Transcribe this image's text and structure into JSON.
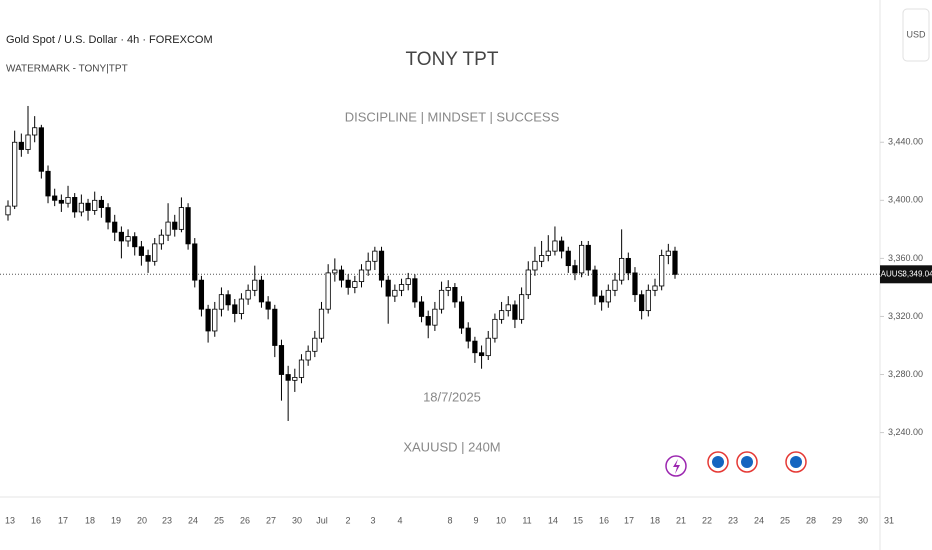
{
  "chart_data": {
    "type": "candlestick",
    "title": "Gold Spot / U.S. Dollar · 4h · FOREXCOM",
    "subtitle": "WATERMARK - TONY|TPT",
    "watermark": {
      "title": "TONY TPT",
      "motto": "DISCIPLINE | MINDSET | SUCCESS",
      "date": "18/7/2025",
      "symbol_interval": "XAUUSD | 240M"
    },
    "currency": "USD",
    "last_price": {
      "symbol": "XAUUSD",
      "value": 3349.04,
      "label": "3,349.04"
    },
    "up_color": "#ffffff",
    "down_color": "#000000",
    "categories": [
      "13",
      "16",
      "17",
      "18",
      "19",
      "20",
      "23",
      "24",
      "25",
      "26",
      "27",
      "30",
      "Jul",
      "2",
      "3",
      "4",
      "8",
      "9",
      "10",
      "11",
      "14",
      "15",
      "16",
      "17",
      "18",
      "21",
      "22",
      "23",
      "24",
      "25",
      "28",
      "29",
      "30",
      "31"
    ],
    "ylim": [
      3197,
      3538
    ],
    "yticks": [
      {
        "value": 3440,
        "label": "3,440.00"
      },
      {
        "value": 3400,
        "label": "3,400.00"
      },
      {
        "value": 3360,
        "label": "3,360.00"
      },
      {
        "value": 3320,
        "label": "3,320.00"
      },
      {
        "value": 3280,
        "label": "3,280.00"
      },
      {
        "value": 3240,
        "label": "3,240.00"
      }
    ],
    "ohlc": [
      [
        3390,
        3400,
        3386,
        3396
      ],
      [
        3396,
        3448,
        3394,
        3440
      ],
      [
        3440,
        3446,
        3430,
        3435
      ],
      [
        3435,
        3465,
        3432,
        3445
      ],
      [
        3445,
        3458,
        3440,
        3450
      ],
      [
        3450,
        3452,
        3415,
        3420
      ],
      [
        3420,
        3424,
        3398,
        3403
      ],
      [
        3403,
        3408,
        3396,
        3400
      ],
      [
        3400,
        3404,
        3392,
        3398
      ],
      [
        3398,
        3410,
        3395,
        3402
      ],
      [
        3402,
        3405,
        3388,
        3392
      ],
      [
        3392,
        3404,
        3389,
        3398
      ],
      [
        3398,
        3401,
        3386,
        3393
      ],
      [
        3393,
        3406,
        3390,
        3400
      ],
      [
        3400,
        3403,
        3388,
        3395
      ],
      [
        3395,
        3398,
        3380,
        3385
      ],
      [
        3385,
        3390,
        3372,
        3378
      ],
      [
        3378,
        3382,
        3360,
        3372
      ],
      [
        3372,
        3380,
        3368,
        3375
      ],
      [
        3375,
        3378,
        3362,
        3368
      ],
      [
        3368,
        3372,
        3355,
        3362
      ],
      [
        3362,
        3366,
        3350,
        3358
      ],
      [
        3358,
        3374,
        3355,
        3370
      ],
      [
        3370,
        3380,
        3366,
        3376
      ],
      [
        3376,
        3398,
        3372,
        3385
      ],
      [
        3385,
        3390,
        3375,
        3380
      ],
      [
        3380,
        3402,
        3378,
        3395
      ],
      [
        3395,
        3398,
        3366,
        3370
      ],
      [
        3370,
        3374,
        3340,
        3345
      ],
      [
        3345,
        3348,
        3320,
        3325
      ],
      [
        3325,
        3328,
        3302,
        3310
      ],
      [
        3310,
        3330,
        3306,
        3325
      ],
      [
        3325,
        3340,
        3320,
        3335
      ],
      [
        3335,
        3338,
        3324,
        3328
      ],
      [
        3328,
        3332,
        3316,
        3322
      ],
      [
        3322,
        3336,
        3318,
        3332
      ],
      [
        3332,
        3342,
        3328,
        3338
      ],
      [
        3338,
        3355,
        3334,
        3345
      ],
      [
        3345,
        3348,
        3326,
        3330
      ],
      [
        3330,
        3334,
        3318,
        3325
      ],
      [
        3325,
        3328,
        3292,
        3300
      ],
      [
        3300,
        3304,
        3262,
        3280
      ],
      [
        3280,
        3286,
        3248,
        3276
      ],
      [
        3276,
        3284,
        3268,
        3278
      ],
      [
        3278,
        3294,
        3274,
        3290
      ],
      [
        3290,
        3300,
        3286,
        3296
      ],
      [
        3296,
        3310,
        3292,
        3305
      ],
      [
        3305,
        3330,
        3302,
        3325
      ],
      [
        3325,
        3356,
        3322,
        3350
      ],
      [
        3350,
        3360,
        3344,
        3352
      ],
      [
        3352,
        3355,
        3340,
        3345
      ],
      [
        3345,
        3349,
        3335,
        3340
      ],
      [
        3340,
        3348,
        3336,
        3344
      ],
      [
        3344,
        3356,
        3340,
        3352
      ],
      [
        3352,
        3364,
        3348,
        3358
      ],
      [
        3358,
        3368,
        3352,
        3365
      ],
      [
        3365,
        3368,
        3340,
        3345
      ],
      [
        3345,
        3348,
        3315,
        3334
      ],
      [
        3334,
        3342,
        3330,
        3338
      ],
      [
        3338,
        3346,
        3334,
        3342
      ],
      [
        3342,
        3350,
        3338,
        3346
      ],
      [
        3346,
        3349,
        3326,
        3330
      ],
      [
        3330,
        3334,
        3316,
        3320
      ],
      [
        3320,
        3324,
        3305,
        3314
      ],
      [
        3314,
        3330,
        3310,
        3325
      ],
      [
        3325,
        3344,
        3322,
        3338
      ],
      [
        3338,
        3345,
        3334,
        3340
      ],
      [
        3340,
        3343,
        3326,
        3330
      ],
      [
        3330,
        3334,
        3308,
        3312
      ],
      [
        3312,
        3316,
        3298,
        3303
      ],
      [
        3303,
        3306,
        3288,
        3295
      ],
      [
        3295,
        3300,
        3284,
        3293
      ],
      [
        3293,
        3310,
        3290,
        3305
      ],
      [
        3305,
        3322,
        3302,
        3318
      ],
      [
        3318,
        3330,
        3315,
        3324
      ],
      [
        3324,
        3334,
        3320,
        3328
      ],
      [
        3328,
        3331,
        3312,
        3318
      ],
      [
        3318,
        3340,
        3315,
        3335
      ],
      [
        3335,
        3358,
        3332,
        3352
      ],
      [
        3352,
        3368,
        3348,
        3358
      ],
      [
        3358,
        3372,
        3354,
        3362
      ],
      [
        3362,
        3376,
        3358,
        3365
      ],
      [
        3365,
        3382,
        3362,
        3372
      ],
      [
        3372,
        3375,
        3360,
        3365
      ],
      [
        3365,
        3368,
        3350,
        3355
      ],
      [
        3355,
        3359,
        3345,
        3350
      ],
      [
        3350,
        3372,
        3347,
        3369
      ],
      [
        3369,
        3372,
        3348,
        3352
      ],
      [
        3352,
        3355,
        3328,
        3334
      ],
      [
        3334,
        3338,
        3324,
        3330
      ],
      [
        3330,
        3342,
        3326,
        3338
      ],
      [
        3338,
        3350,
        3334,
        3345
      ],
      [
        3345,
        3380,
        3342,
        3360
      ],
      [
        3360,
        3364,
        3345,
        3350
      ],
      [
        3350,
        3354,
        3330,
        3335
      ],
      [
        3335,
        3338,
        3318,
        3324
      ],
      [
        3324,
        3342,
        3320,
        3338
      ],
      [
        3338,
        3346,
        3334,
        3341
      ],
      [
        3341,
        3366,
        3338,
        3362
      ],
      [
        3362,
        3370,
        3356,
        3365
      ],
      [
        3365,
        3368,
        3346,
        3349
      ]
    ]
  }
}
